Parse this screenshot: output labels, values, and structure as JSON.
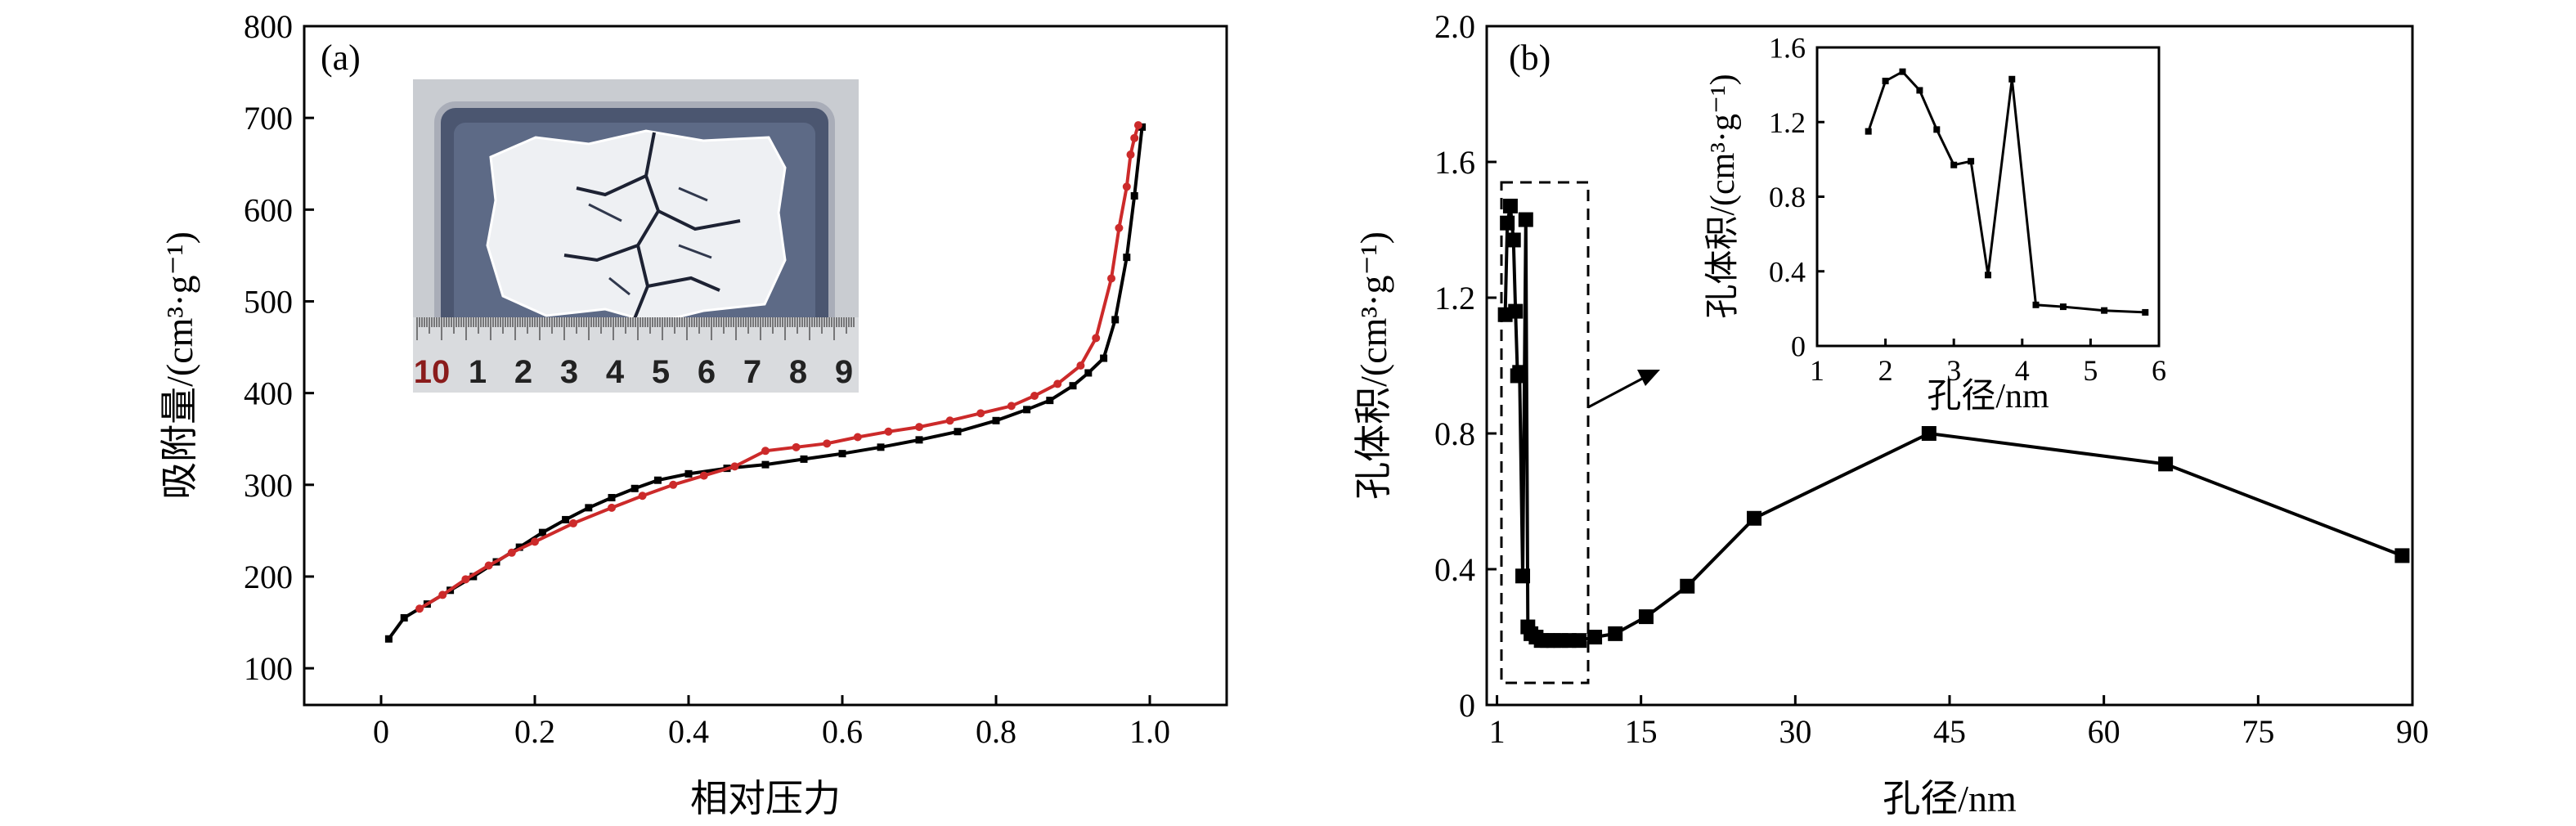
{
  "chart_data": [
    {
      "type": "line",
      "panel_label": "(a)",
      "xlabel": "相对压力",
      "ylabel": "吸附量/(cm³·g⁻¹)",
      "xlim": [
        -0.1,
        1.1
      ],
      "ylim": [
        60,
        800
      ],
      "xticks": [
        0,
        0.2,
        0.4,
        0.6,
        0.8,
        1.0
      ],
      "xtick_labels": [
        "0",
        "0.2",
        "0.4",
        "0.6",
        "0.8",
        "1.0"
      ],
      "yticks": [
        100,
        200,
        300,
        400,
        500,
        600,
        700,
        800
      ],
      "ytick_labels": [
        "100",
        "200",
        "300",
        "400",
        "500",
        "600",
        "700",
        "800"
      ],
      "inset": "photo of cracked white monolith in a clear plastic box with a ruler",
      "ruler_labels": [
        "10",
        "1",
        "2",
        "3",
        "4",
        "5",
        "6",
        "7",
        "8",
        "9"
      ],
      "series": [
        {
          "color": "#000000",
          "marker": "square",
          "x": [
            0.01,
            0.03,
            0.06,
            0.09,
            0.12,
            0.15,
            0.18,
            0.21,
            0.24,
            0.27,
            0.3,
            0.33,
            0.36,
            0.4,
            0.45,
            0.5,
            0.55,
            0.6,
            0.65,
            0.7,
            0.75,
            0.8,
            0.84,
            0.87,
            0.9,
            0.92,
            0.94,
            0.955,
            0.97,
            0.98,
            0.99
          ],
          "y": [
            132,
            155,
            170,
            185,
            200,
            216,
            232,
            248,
            262,
            275,
            286,
            296,
            305,
            312,
            318,
            322,
            328,
            334,
            341,
            349,
            358,
            370,
            382,
            392,
            408,
            422,
            438,
            480,
            548,
            615,
            690
          ]
        },
        {
          "color": "#cc2a2a",
          "marker": "circle",
          "x": [
            0.05,
            0.08,
            0.11,
            0.14,
            0.17,
            0.2,
            0.25,
            0.3,
            0.34,
            0.38,
            0.42,
            0.46,
            0.5,
            0.54,
            0.58,
            0.62,
            0.66,
            0.7,
            0.74,
            0.78,
            0.82,
            0.85,
            0.88,
            0.91,
            0.93,
            0.95,
            0.96,
            0.97,
            0.975,
            0.98,
            0.985
          ],
          "y": [
            165,
            180,
            197,
            212,
            226,
            238,
            258,
            275,
            288,
            300,
            310,
            320,
            337,
            341,
            345,
            352,
            358,
            363,
            370,
            378,
            386,
            397,
            410,
            430,
            460,
            525,
            580,
            625,
            660,
            678,
            692
          ]
        }
      ]
    },
    {
      "type": "line",
      "panel_label": "(b)",
      "xlabel": "孔径/nm",
      "ylabel": "孔体积/(cm³·g⁻¹)",
      "xlim": [
        0,
        90
      ],
      "ylim": [
        0,
        2.0
      ],
      "xticks": [
        1,
        15,
        30,
        45,
        60,
        75,
        90
      ],
      "xtick_labels": [
        "1",
        "15",
        "30",
        "45",
        "60",
        "75",
        "90"
      ],
      "yticks": [
        0,
        0.4,
        0.8,
        1.2,
        1.6,
        2.0
      ],
      "ytick_labels": [
        "0",
        "0.4",
        "0.8",
        "1.2",
        "1.6",
        "2.0"
      ],
      "series": [
        {
          "color": "#000000",
          "marker": "square",
          "x": [
            1.8,
            2.0,
            2.3,
            2.6,
            2.8,
            3.0,
            3.2,
            3.5,
            3.8,
            4.0,
            4.3,
            4.8,
            5.3,
            5.9,
            6.5,
            7.2,
            8.0,
            9.0,
            10.5,
            12.5,
            15.5,
            19.5,
            26.0,
            43.0,
            66.0,
            89.0
          ],
          "y": [
            1.15,
            1.42,
            1.47,
            1.37,
            1.16,
            0.97,
            0.98,
            0.38,
            1.43,
            0.23,
            0.21,
            0.2,
            0.19,
            0.19,
            0.19,
            0.19,
            0.19,
            0.19,
            0.2,
            0.21,
            0.26,
            0.35,
            0.55,
            0.8,
            0.71,
            0.44
          ]
        }
      ],
      "inset_chart": {
        "type": "line",
        "xlabel": "孔径/nm",
        "ylabel": "孔体积/(cm³·g⁻¹)",
        "xlim": [
          1,
          6
        ],
        "ylim": [
          0,
          1.6
        ],
        "xticks": [
          1,
          2,
          3,
          4,
          5,
          6
        ],
        "xtick_labels": [
          "1",
          "2",
          "3",
          "4",
          "5",
          "6"
        ],
        "yticks": [
          0,
          0.4,
          0.8,
          1.2,
          1.6
        ],
        "ytick_labels": [
          "0",
          "0.4",
          "0.8",
          "1.2",
          "1.6"
        ],
        "x": [
          1.75,
          2.0,
          2.25,
          2.5,
          2.75,
          3.0,
          3.25,
          3.5,
          3.85,
          4.2,
          4.6,
          5.2,
          5.8
        ],
        "y": [
          1.15,
          1.42,
          1.47,
          1.37,
          1.16,
          0.97,
          0.99,
          0.38,
          1.43,
          0.22,
          0.21,
          0.19,
          0.18
        ]
      }
    }
  ]
}
